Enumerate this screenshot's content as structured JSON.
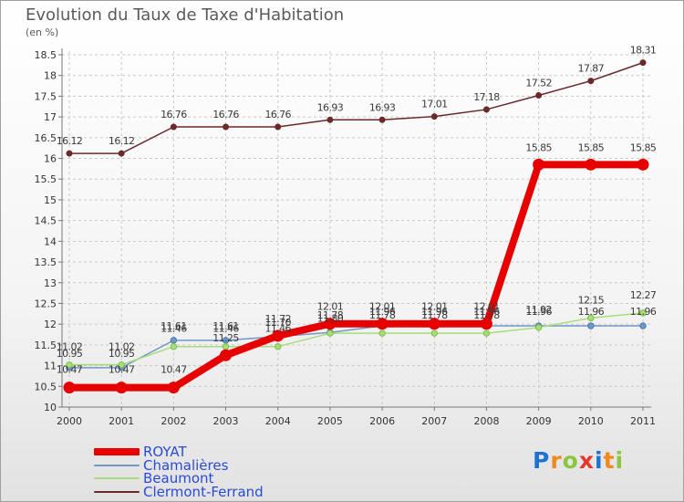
{
  "title": "Evolution du Taux de Taxe d'Habitation",
  "unit": "(en %)",
  "logo_text": "Proxiti",
  "logo_colors": [
    "#1e73d2",
    "#f08a1c",
    "#8cc63f",
    "#e23b2e",
    "#1e73d2",
    "#f08a1c",
    "#8cc63f"
  ],
  "chart_data": {
    "type": "line",
    "x": [
      2000,
      2001,
      2002,
      2003,
      2004,
      2005,
      2006,
      2007,
      2008,
      2009,
      2010,
      2011
    ],
    "ylim": [
      10,
      18.5
    ],
    "yticks": [
      10,
      10.5,
      11,
      11.5,
      12,
      12.5,
      13,
      13.5,
      14,
      14.5,
      15,
      15.5,
      16,
      16.5,
      17,
      17.5,
      18,
      18.5
    ],
    "grid": true,
    "legend_position": "bottom-left",
    "series": [
      {
        "name": "ROYAT",
        "color": "#e60000",
        "values": [
          10.47,
          10.47,
          10.47,
          11.25,
          11.72,
          12.01,
          12.01,
          12.01,
          12.01,
          15.85,
          15.85,
          15.85
        ],
        "labels": [
          "10.47",
          "10.47",
          "10.47",
          "11.25",
          "11.72",
          "12.01",
          "12.01",
          "12.01",
          "12.01",
          "15.85",
          "15.85",
          "15.85"
        ]
      },
      {
        "name": "Chamalières",
        "color": "#6f98c4",
        "values": [
          10.95,
          10.95,
          11.61,
          11.61,
          11.7,
          11.8,
          11.96,
          11.96,
          11.96,
          11.96,
          11.96,
          11.96
        ],
        "labels": [
          "10.95",
          "10.95",
          "11.61",
          "11.61",
          "11.70",
          "11.80",
          "11.96",
          "11.96",
          "11.96",
          "11.96",
          "11.96",
          "11.96"
        ]
      },
      {
        "name": "Beaumont",
        "color": "#a6dd7a",
        "values": [
          11.02,
          11.02,
          11.46,
          11.46,
          11.46,
          11.78,
          11.78,
          11.78,
          11.78,
          11.92,
          12.15,
          12.27
        ],
        "labels": [
          "11.02",
          "11.02",
          "11.46",
          "11.46",
          "11.46",
          "11.78",
          "11.78",
          "11.78",
          "11.78",
          "11.92",
          "12.15",
          "12.27"
        ]
      },
      {
        "name": "Clermont-Ferrand",
        "color": "#6b2a2a",
        "values": [
          16.12,
          16.12,
          16.76,
          16.76,
          16.76,
          16.93,
          16.93,
          17.01,
          17.18,
          17.52,
          17.87,
          18.31
        ],
        "labels": [
          "16.12",
          "16.12",
          "16.76",
          "16.76",
          "16.76",
          "16.93",
          "16.93",
          "17.01",
          "17.18",
          "17.52",
          "17.87",
          "18.31"
        ]
      }
    ]
  }
}
